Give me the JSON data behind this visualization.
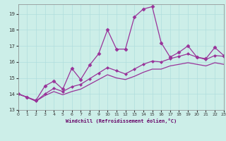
{
  "xlabel": "Windchill (Refroidissement éolien,°C)",
  "bg_color": "#cceee8",
  "grid_color": "#b0dddd",
  "line_color": "#993399",
  "xlim": [
    0,
    23
  ],
  "ylim": [
    13,
    19.6
  ],
  "yticks": [
    13,
    14,
    15,
    16,
    17,
    18,
    19
  ],
  "xticks": [
    0,
    1,
    2,
    3,
    4,
    5,
    6,
    7,
    8,
    9,
    10,
    11,
    12,
    13,
    14,
    15,
    16,
    17,
    18,
    19,
    20,
    21,
    22,
    23
  ],
  "line1_x": [
    0,
    1,
    2,
    3,
    4,
    5,
    6,
    7,
    8,
    9,
    10,
    11,
    12,
    13,
    14,
    15,
    16,
    17,
    18,
    19,
    20,
    21,
    22,
    23
  ],
  "line1_y": [
    14.0,
    13.8,
    13.6,
    14.5,
    14.8,
    14.3,
    15.6,
    14.9,
    15.8,
    16.5,
    18.0,
    16.8,
    16.8,
    18.8,
    19.3,
    19.45,
    17.2,
    16.3,
    16.6,
    17.0,
    16.3,
    16.2,
    16.9,
    16.4
  ],
  "line2_x": [
    0,
    1,
    2,
    3,
    4,
    5,
    6,
    7,
    8,
    9,
    10,
    11,
    12,
    13,
    14,
    15,
    16,
    17,
    18,
    19,
    20,
    21,
    22,
    23
  ],
  "line2_y": [
    14.0,
    13.8,
    13.55,
    14.0,
    14.35,
    14.15,
    14.45,
    14.6,
    14.95,
    15.3,
    15.65,
    15.45,
    15.25,
    15.55,
    15.85,
    16.05,
    16.0,
    16.2,
    16.35,
    16.5,
    16.3,
    16.15,
    16.4,
    16.35
  ],
  "line3_x": [
    0,
    1,
    2,
    3,
    4,
    5,
    6,
    7,
    8,
    9,
    10,
    11,
    12,
    13,
    14,
    15,
    16,
    17,
    18,
    19,
    20,
    21,
    22,
    23
  ],
  "line3_y": [
    14.0,
    13.8,
    13.55,
    13.9,
    14.15,
    13.95,
    14.15,
    14.3,
    14.6,
    14.9,
    15.2,
    15.0,
    14.9,
    15.1,
    15.35,
    15.55,
    15.55,
    15.75,
    15.85,
    15.95,
    15.85,
    15.75,
    15.95,
    15.85
  ]
}
